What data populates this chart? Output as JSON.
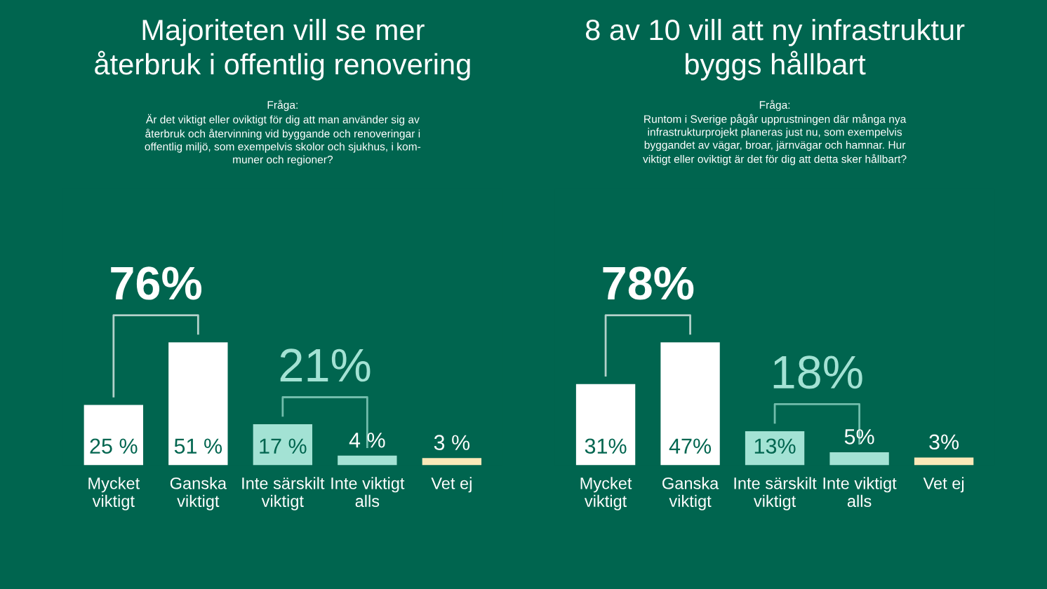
{
  "chart_data": [
    {
      "type": "bar",
      "title": "Majoriteten vill se mer\nåterbruk i offentlig renovering",
      "categories": [
        "Mycket\nviktigt",
        "Ganska\nviktigt",
        "Inte särskilt\nviktigt",
        "Inte viktigt\nalls",
        "Vet ej"
      ],
      "values": [
        25,
        51,
        17,
        4,
        3
      ],
      "colors": [
        "#ffffff",
        "#ffffff",
        "#a3e2d4",
        "#a3e2d4",
        "#fbe8b8"
      ],
      "value_labels": [
        "25 %",
        "51 %",
        "17 %",
        "4 %",
        "3 %"
      ],
      "annotations": [
        "Fråga:\nÄr det viktigt eller oviktigt för dig att man använder sig av\nåterbruk och återvinning vid byggande och renoveringar i\noffentlig miljö, som exempelvis skolor och sjukhus, i kom-\nmuner och regioner?",
        "76%",
        "21%"
      ],
      "grid": false,
      "legend": false
    },
    {
      "type": "bar",
      "title": "8 av 10 vill att ny infrastruktur\nbyggs hållbart",
      "categories": [
        "Mycket\nviktigt",
        "Ganska\nviktigt",
        "Inte särskilt\nviktigt",
        "Inte viktigt\nalls",
        "Vet ej"
      ],
      "values": [
        31,
        47,
        13,
        5,
        3
      ],
      "colors": [
        "#ffffff",
        "#ffffff",
        "#a3e2d4",
        "#a3e2d4",
        "#fbe8b8"
      ],
      "value_labels": [
        "31%",
        "47%",
        "13%",
        "5%",
        "3%"
      ],
      "annotations": [
        "Fråga:\nRuntom i Sverige pågår upprustningen där många nya\ninfrastrukturprojekt planeras just nu, som exempelvis\nbyggandet av vägar, broar, järnvägar och hamnar. Hur\nviktigt eller oviktigt är det för dig att detta sker hållbart?",
        "78%",
        "18%"
      ],
      "grid": false,
      "legend": false
    }
  ]
}
